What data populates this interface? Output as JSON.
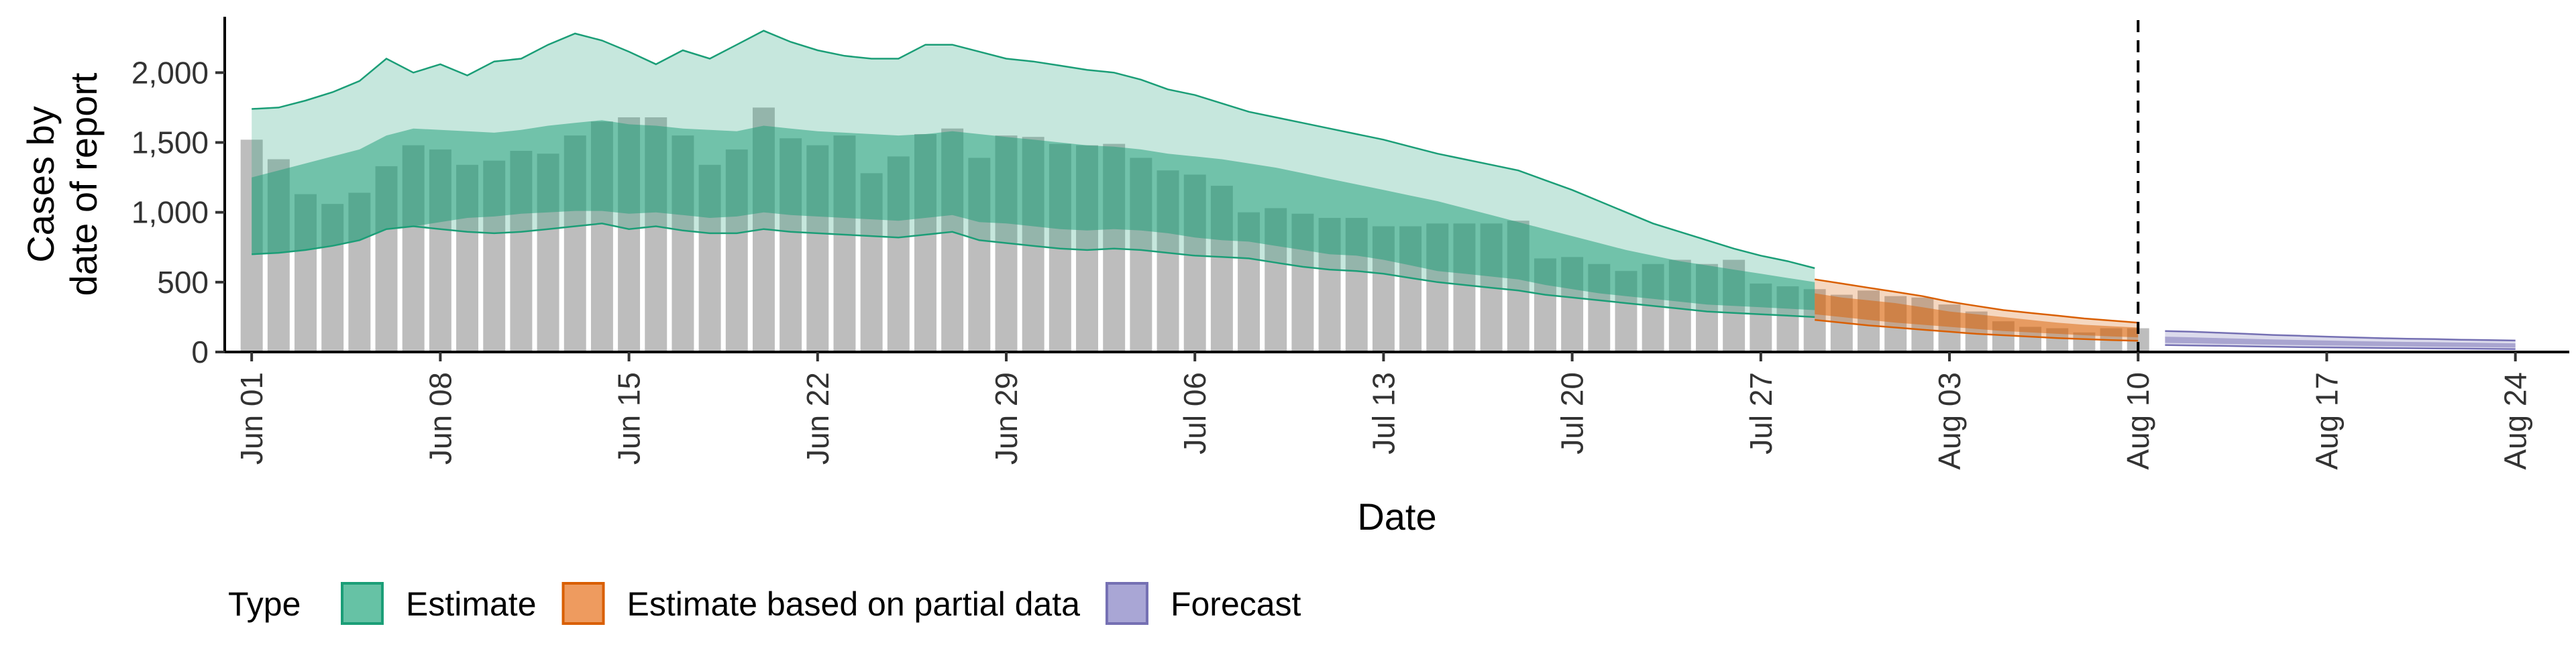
{
  "chart_data": {
    "type": "bar",
    "xlabel": "Date",
    "ylabel_lines": [
      "Cases by",
      "date of report"
    ],
    "ylim": [
      0,
      2400
    ],
    "y_ticks": [
      0,
      500,
      1000,
      1500,
      2000
    ],
    "y_tick_labels": [
      "0",
      "500",
      "1,000",
      "1,500",
      "2,000"
    ],
    "grid": false,
    "x_start_date": "2020-05-31",
    "x_end_date": "2020-08-26",
    "x_tick_dates": [
      "2020-06-01",
      "2020-06-08",
      "2020-06-15",
      "2020-06-22",
      "2020-06-29",
      "2020-07-06",
      "2020-07-13",
      "2020-07-20",
      "2020-07-27",
      "2020-08-03",
      "2020-08-10",
      "2020-08-17",
      "2020-08-24"
    ],
    "x_tick_labels": [
      "Jun 01",
      "Jun 08",
      "Jun 15",
      "Jun 22",
      "Jun 29",
      "Jul 06",
      "Jul 13",
      "Jul 20",
      "Jul 27",
      "Aug 03",
      "Aug 10",
      "Aug 17",
      "Aug 24"
    ],
    "vline_date": "2020-08-10",
    "bar_color": "#bdbdbd",
    "reported_cases": {
      "start_date": "2020-06-01",
      "values": [
        1520,
        1380,
        1130,
        1060,
        1140,
        1330,
        1480,
        1450,
        1340,
        1370,
        1440,
        1420,
        1550,
        1650,
        1680,
        1680,
        1550,
        1340,
        1450,
        1750,
        1530,
        1480,
        1550,
        1280,
        1400,
        1560,
        1600,
        1390,
        1550,
        1540,
        1490,
        1480,
        1490,
        1390,
        1300,
        1270,
        1190,
        1000,
        1030,
        990,
        960,
        960,
        900,
        900,
        920,
        920,
        920,
        940,
        670,
        680,
        630,
        580,
        630,
        660,
        630,
        660,
        490,
        470,
        450,
        410,
        440,
        400,
        390,
        340,
        290,
        220,
        180,
        170,
        140,
        170,
        170
      ]
    },
    "series": [
      {
        "name": "Estimate",
        "color": "#1b9e77",
        "start_date": "2020-06-01",
        "median": [
          980,
          1000,
          1020,
          1040,
          1100,
          1140,
          1160,
          1180,
          1200,
          1200,
          1220,
          1240,
          1260,
          1280,
          1270,
          1260,
          1250,
          1240,
          1230,
          1250,
          1240,
          1230,
          1220,
          1210,
          1200,
          1210,
          1220,
          1210,
          1200,
          1190,
          1180,
          1170,
          1160,
          1150,
          1130,
          1110,
          1090,
          1070,
          1050,
          1020,
          990,
          960,
          920,
          880,
          840,
          800,
          760,
          720,
          680,
          640,
          600,
          560,
          520,
          500,
          480,
          460,
          440,
          420,
          400
        ],
        "lower50": [
          700,
          710,
          730,
          760,
          800,
          880,
          900,
          930,
          960,
          970,
          990,
          1000,
          1010,
          1010,
          990,
          1000,
          980,
          960,
          970,
          1000,
          980,
          970,
          960,
          950,
          940,
          960,
          980,
          930,
          920,
          900,
          880,
          870,
          880,
          870,
          850,
          820,
          800,
          790,
          760,
          730,
          700,
          690,
          660,
          620,
          580,
          560,
          540,
          520,
          480,
          450,
          420,
          400,
          380,
          360,
          340,
          330,
          320,
          310,
          300
        ],
        "upper50": [
          1250,
          1300,
          1350,
          1400,
          1450,
          1550,
          1600,
          1590,
          1580,
          1570,
          1590,
          1620,
          1640,
          1660,
          1630,
          1620,
          1600,
          1590,
          1580,
          1620,
          1600,
          1580,
          1570,
          1560,
          1550,
          1560,
          1580,
          1560,
          1540,
          1520,
          1500,
          1480,
          1470,
          1450,
          1420,
          1400,
          1380,
          1350,
          1320,
          1280,
          1240,
          1200,
          1160,
          1120,
          1080,
          1030,
          980,
          930,
          880,
          830,
          780,
          730,
          690,
          650,
          620,
          590,
          560,
          530,
          500
        ],
        "lower90": [
          700,
          710,
          730,
          760,
          800,
          880,
          900,
          880,
          860,
          850,
          860,
          880,
          900,
          920,
          880,
          900,
          870,
          850,
          850,
          880,
          860,
          850,
          840,
          830,
          820,
          840,
          860,
          800,
          780,
          760,
          740,
          730,
          740,
          730,
          710,
          690,
          680,
          670,
          640,
          610,
          590,
          580,
          560,
          530,
          500,
          480,
          460,
          440,
          410,
          390,
          370,
          350,
          330,
          310,
          290,
          280,
          270,
          260,
          250
        ],
        "upper90": [
          1740,
          1750,
          1800,
          1860,
          1940,
          2100,
          2000,
          2060,
          1980,
          2080,
          2100,
          2200,
          2280,
          2230,
          2150,
          2060,
          2160,
          2100,
          2200,
          2300,
          2220,
          2160,
          2120,
          2100,
          2100,
          2200,
          2200,
          2150,
          2100,
          2080,
          2050,
          2020,
          2000,
          1950,
          1880,
          1840,
          1780,
          1720,
          1680,
          1640,
          1600,
          1560,
          1520,
          1470,
          1420,
          1380,
          1340,
          1300,
          1230,
          1160,
          1080,
          1000,
          920,
          860,
          800,
          740,
          690,
          650,
          600
        ]
      },
      {
        "name": "Estimate based on partial data",
        "color": "#d95f02",
        "start_date": "2020-07-29",
        "median": [
          340,
          320,
          300,
          280,
          260,
          240,
          220,
          200,
          185,
          170,
          160,
          150,
          140
        ],
        "lower50": [
          270,
          250,
          230,
          210,
          195,
          180,
          165,
          150,
          140,
          130,
          120,
          112,
          105
        ],
        "upper50": [
          420,
          390,
          370,
          350,
          320,
          290,
          270,
          250,
          230,
          210,
          195,
          185,
          175
        ],
        "lower90": [
          230,
          210,
          190,
          175,
          160,
          145,
          130,
          120,
          110,
          100,
          92,
          85,
          80
        ],
        "upper90": [
          520,
          490,
          460,
          430,
          400,
          360,
          330,
          300,
          280,
          260,
          240,
          225,
          210
        ]
      },
      {
        "name": "Forecast",
        "color": "#7570b3",
        "start_date": "2020-08-11",
        "median": [
          85,
          80,
          75,
          72,
          68,
          65,
          62,
          60,
          58,
          55,
          53,
          50,
          48,
          46
        ],
        "lower50": [
          65,
          62,
          58,
          55,
          52,
          49,
          46,
          44,
          42,
          40,
          38,
          36,
          34,
          32
        ],
        "upper50": [
          110,
          105,
          100,
          95,
          90,
          86,
          82,
          78,
          75,
          72,
          70,
          67,
          65,
          62
        ],
        "lower90": [
          50,
          47,
          44,
          41,
          38,
          35,
          33,
          31,
          29,
          27,
          25,
          24,
          22,
          20
        ],
        "upper90": [
          150,
          145,
          138,
          130,
          122,
          116,
          110,
          104,
          99,
          95,
          92,
          88,
          85,
          82
        ]
      }
    ],
    "legend": {
      "title": "Type",
      "position": "bottom",
      "entries": [
        {
          "label": "Estimate",
          "fill": "#66c2a5",
          "stroke": "#1b9e77"
        },
        {
          "label": "Estimate based on partial data",
          "fill": "#ee9b5f",
          "stroke": "#d95f02"
        },
        {
          "label": "Forecast",
          "fill": "#a9a6d5",
          "stroke": "#7570b3"
        }
      ]
    }
  }
}
